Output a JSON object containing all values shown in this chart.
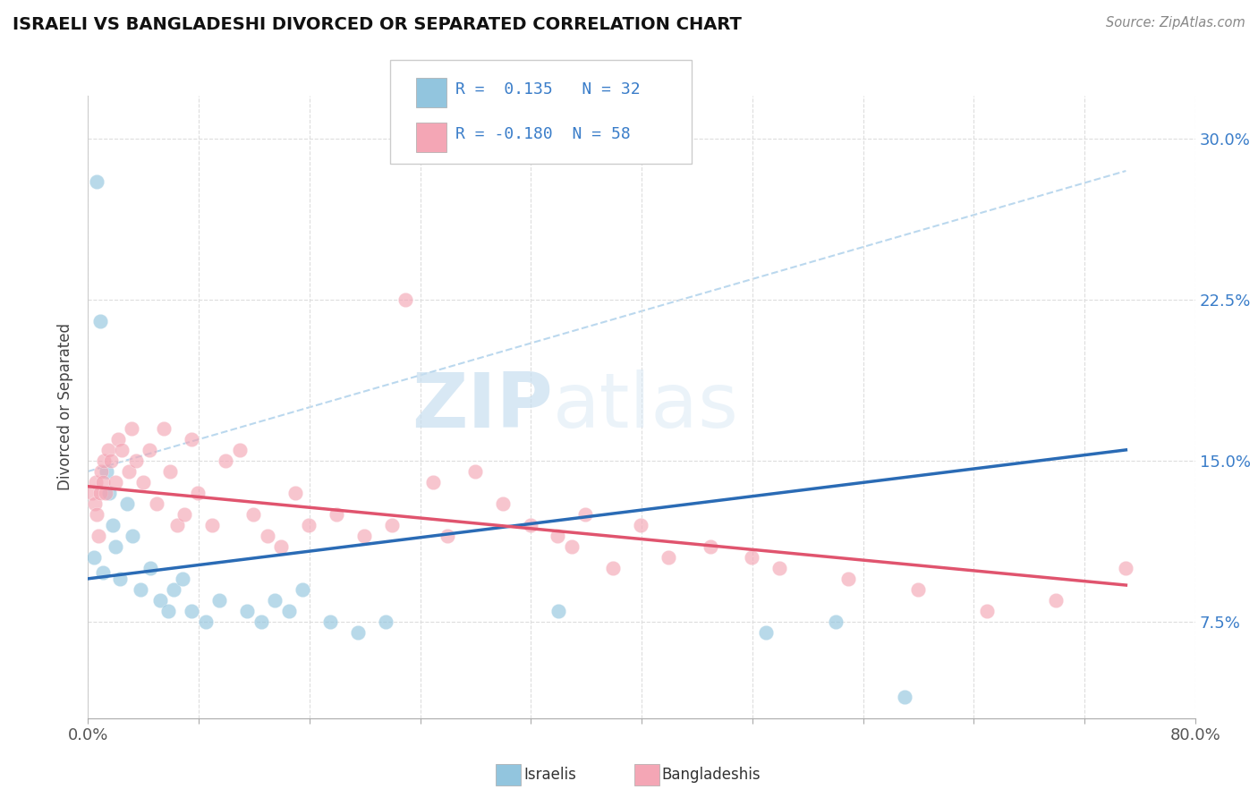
{
  "title": "ISRAELI VS BANGLADESHI DIVORCED OR SEPARATED CORRELATION CHART",
  "source_text": "Source: ZipAtlas.com",
  "ylabel": "Divorced or Separated",
  "xlim": [
    0.0,
    80.0
  ],
  "ylim": [
    3.0,
    32.0
  ],
  "yticks": [
    7.5,
    15.0,
    22.5,
    30.0
  ],
  "watermark_zip": "ZIP",
  "watermark_atlas": "atlas",
  "legend_r1": "R =  0.135",
  "legend_n1": "N = 32",
  "legend_r2": "R = -0.180",
  "legend_n2": "N = 58",
  "blue_color": "#92C5DE",
  "pink_color": "#F4A6B5",
  "blue_scatter": [
    [
      0.4,
      10.5
    ],
    [
      0.6,
      28.0
    ],
    [
      0.9,
      21.5
    ],
    [
      1.1,
      9.8
    ],
    [
      1.3,
      14.5
    ],
    [
      1.5,
      13.5
    ],
    [
      1.8,
      12.0
    ],
    [
      2.0,
      11.0
    ],
    [
      2.3,
      9.5
    ],
    [
      2.8,
      13.0
    ],
    [
      3.2,
      11.5
    ],
    [
      3.8,
      9.0
    ],
    [
      4.5,
      10.0
    ],
    [
      5.2,
      8.5
    ],
    [
      5.8,
      8.0
    ],
    [
      6.2,
      9.0
    ],
    [
      6.8,
      9.5
    ],
    [
      7.5,
      8.0
    ],
    [
      8.5,
      7.5
    ],
    [
      9.5,
      8.5
    ],
    [
      11.5,
      8.0
    ],
    [
      12.5,
      7.5
    ],
    [
      13.5,
      8.5
    ],
    [
      14.5,
      8.0
    ],
    [
      15.5,
      9.0
    ],
    [
      17.5,
      7.5
    ],
    [
      19.5,
      7.0
    ],
    [
      21.5,
      7.5
    ],
    [
      34.0,
      8.0
    ],
    [
      49.0,
      7.0
    ],
    [
      54.0,
      7.5
    ],
    [
      59.0,
      4.0
    ]
  ],
  "pink_scatter": [
    [
      0.3,
      13.5
    ],
    [
      0.5,
      13.0
    ],
    [
      0.55,
      14.0
    ],
    [
      0.65,
      12.5
    ],
    [
      0.75,
      11.5
    ],
    [
      0.85,
      13.5
    ],
    [
      0.95,
      14.5
    ],
    [
      1.05,
      14.0
    ],
    [
      1.15,
      15.0
    ],
    [
      1.25,
      13.5
    ],
    [
      1.45,
      15.5
    ],
    [
      1.65,
      15.0
    ],
    [
      1.95,
      14.0
    ],
    [
      2.15,
      16.0
    ],
    [
      2.45,
      15.5
    ],
    [
      2.95,
      14.5
    ],
    [
      3.15,
      16.5
    ],
    [
      3.45,
      15.0
    ],
    [
      3.95,
      14.0
    ],
    [
      4.45,
      15.5
    ],
    [
      4.95,
      13.0
    ],
    [
      5.45,
      16.5
    ],
    [
      5.95,
      14.5
    ],
    [
      6.45,
      12.0
    ],
    [
      6.95,
      12.5
    ],
    [
      7.45,
      16.0
    ],
    [
      7.95,
      13.5
    ],
    [
      8.95,
      12.0
    ],
    [
      9.95,
      15.0
    ],
    [
      10.95,
      15.5
    ],
    [
      11.95,
      12.5
    ],
    [
      12.95,
      11.5
    ],
    [
      13.95,
      11.0
    ],
    [
      14.95,
      13.5
    ],
    [
      15.95,
      12.0
    ],
    [
      17.95,
      12.5
    ],
    [
      19.95,
      11.5
    ],
    [
      21.95,
      12.0
    ],
    [
      22.95,
      22.5
    ],
    [
      24.95,
      14.0
    ],
    [
      25.95,
      11.5
    ],
    [
      27.95,
      14.5
    ],
    [
      29.95,
      13.0
    ],
    [
      31.95,
      12.0
    ],
    [
      33.95,
      11.5
    ],
    [
      34.95,
      11.0
    ],
    [
      35.95,
      12.5
    ],
    [
      37.95,
      10.0
    ],
    [
      39.95,
      12.0
    ],
    [
      41.95,
      10.5
    ],
    [
      44.95,
      11.0
    ],
    [
      47.95,
      10.5
    ],
    [
      49.95,
      10.0
    ],
    [
      54.95,
      9.5
    ],
    [
      59.95,
      9.0
    ],
    [
      64.95,
      8.0
    ],
    [
      69.95,
      8.5
    ],
    [
      74.95,
      10.0
    ]
  ],
  "blue_line": [
    [
      0.0,
      9.5
    ],
    [
      75.0,
      15.5
    ]
  ],
  "pink_line": [
    [
      0.0,
      13.8
    ],
    [
      75.0,
      9.2
    ]
  ],
  "dashed_line": [
    [
      0.0,
      14.5
    ],
    [
      75.0,
      28.5
    ]
  ],
  "grid_color": "#DDDDDD",
  "background_color": "#ffffff",
  "tick_color": "#3a7dc9",
  "xtick_color": "#555555"
}
